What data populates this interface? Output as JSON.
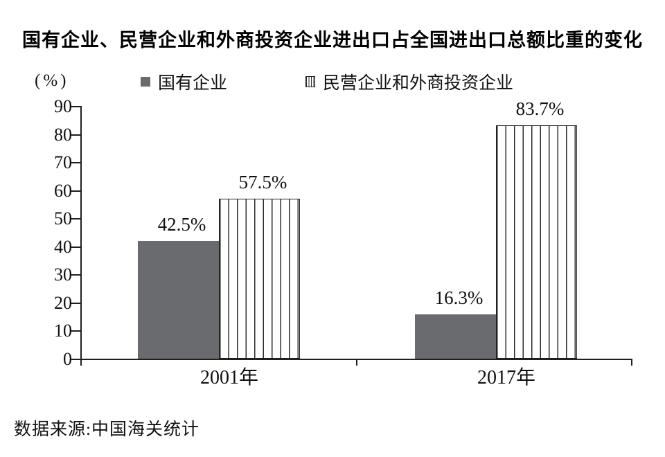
{
  "title": "国有企业、民营企业和外商投资企业进出口占全国进出口总额比重的变化",
  "y_axis_unit": "(%)",
  "legend": {
    "items": [
      {
        "label": "国有企业",
        "swatch": "solid"
      },
      {
        "label": "民营企业和外商投资企业",
        "swatch": "striped"
      }
    ]
  },
  "source": "数据来源:中国海关统计",
  "colors": {
    "solid_bar": "#6a6b6f",
    "axis": "#1f1f1f",
    "stripe": "#2b2b2b",
    "text": "#111111"
  },
  "chart_data": {
    "type": "bar",
    "categories": [
      "2001年",
      "2017年"
    ],
    "series": [
      {
        "name": "国有企业",
        "style": "solid",
        "values": [
          42.5,
          16.3
        ],
        "data_labels": [
          "42.5%",
          "16.3%"
        ]
      },
      {
        "name": "民营企业和外商投资企业",
        "style": "striped",
        "values": [
          57.5,
          83.7
        ],
        "data_labels": [
          "57.5%",
          "83.7%"
        ]
      }
    ],
    "ylabel": "(%)",
    "ylim": [
      0,
      90
    ],
    "yticks": [
      0,
      10,
      20,
      30,
      40,
      50,
      60,
      70,
      80,
      90
    ],
    "grid": false,
    "legend_position": "top",
    "data_label_position": "above"
  }
}
